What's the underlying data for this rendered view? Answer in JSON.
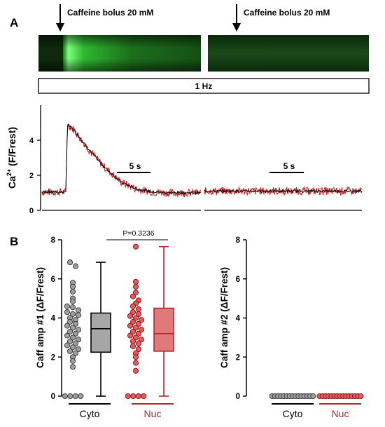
{
  "colors": {
    "cyto": "#9e9e9e",
    "cyto_box": "#a6a6a6",
    "nuc": "#ea5a5a",
    "nuc_box": "#e07a7a",
    "nuc_line": "#b3262b",
    "trace_black": "#111111",
    "trace_red": "#d11a1a",
    "linescan_green": "#3fcf3f"
  },
  "panel_a": {
    "label": "A",
    "annotation_left": "Caffeine bolus 20 mM",
    "annotation_right": "Caffeine bolus 20 mM",
    "pacing_label": "1 Hz",
    "scale_bar_left": "5 s",
    "scale_bar_right": "5 s"
  },
  "panel_b": {
    "label": "B",
    "p_value": "P=0.3236"
  },
  "chart_data": [
    {
      "type": "line",
      "title": "",
      "ylabel": "Ca2+ (F/Frest)",
      "ylabel_main": "Ca",
      "ylabel_sup": "2+",
      "ylabel_rest": " (F/Frest)",
      "xlabel": "",
      "yticks": [
        "0",
        "2",
        "4"
      ],
      "ylim": [
        0,
        6
      ],
      "series": [
        {
          "segment": "left",
          "x": [
            0,
            0.15,
            0.16,
            0.2,
            0.3,
            0.4,
            0.5,
            0.6,
            0.7,
            0.8,
            0.9,
            1.0
          ],
          "values": [
            1.05,
            1.05,
            4.9,
            4.6,
            3.4,
            2.4,
            1.6,
            1.2,
            1.05,
            1.0,
            1.0,
            1.0
          ]
        },
        {
          "segment": "right",
          "x": [
            0,
            1
          ],
          "values": [
            1.1,
            1.1
          ]
        }
      ]
    },
    {
      "type": "box",
      "title": "",
      "ylabel": "Caff amp #1 (ΔF/Frest)",
      "categories": [
        "Cyto",
        "Nuc"
      ],
      "yticks": [
        "0",
        "2",
        "4",
        "6",
        "8"
      ],
      "ylim": [
        0,
        8
      ],
      "series": [
        {
          "name": "Cyto",
          "min": 0.0,
          "q1": 2.25,
          "median": 3.45,
          "q3": 4.25,
          "max": 6.85,
          "points": [
            6.85,
            6.65,
            5.8,
            5.6,
            5.35,
            5.0,
            4.85,
            4.6,
            4.55,
            4.4,
            4.3,
            4.2,
            4.15,
            4.0,
            3.9,
            3.8,
            3.7,
            3.6,
            3.5,
            3.4,
            3.3,
            3.2,
            3.1,
            3.0,
            2.9,
            2.8,
            2.7,
            2.6,
            2.5,
            2.4,
            2.3,
            2.2,
            2.0,
            1.8,
            1.5,
            0.0,
            0.0,
            0.0,
            0.0
          ]
        },
        {
          "name": "Nuc",
          "min": 0.0,
          "q1": 2.3,
          "median": 3.2,
          "q3": 4.5,
          "max": 7.65,
          "points": [
            7.65,
            5.85,
            5.6,
            5.3,
            5.1,
            4.9,
            4.75,
            4.6,
            4.45,
            4.3,
            4.2,
            4.1,
            4.0,
            3.9,
            3.8,
            3.7,
            3.6,
            3.5,
            3.4,
            3.3,
            3.2,
            3.1,
            3.0,
            2.9,
            2.8,
            2.7,
            2.55,
            2.4,
            2.2,
            2.0,
            1.7,
            1.3,
            0.0,
            0.0,
            0.0,
            0.0
          ]
        }
      ]
    },
    {
      "type": "scatter",
      "title": "",
      "ylabel": "Caff amp #2 (ΔF/Frest)",
      "categories": [
        "Cyto",
        "Nuc"
      ],
      "yticks": [
        "0",
        "2",
        "4",
        "6",
        "8"
      ],
      "ylim": [
        0,
        8
      ],
      "series": [
        {
          "name": "Cyto",
          "values": [
            0,
            0,
            0,
            0,
            0,
            0,
            0,
            0,
            0,
            0,
            0,
            0,
            0,
            0,
            0
          ]
        },
        {
          "name": "Nuc",
          "values": [
            0,
            0,
            0,
            0,
            0,
            0,
            0,
            0,
            0,
            0,
            0,
            0,
            0,
            0,
            0
          ]
        }
      ]
    }
  ]
}
